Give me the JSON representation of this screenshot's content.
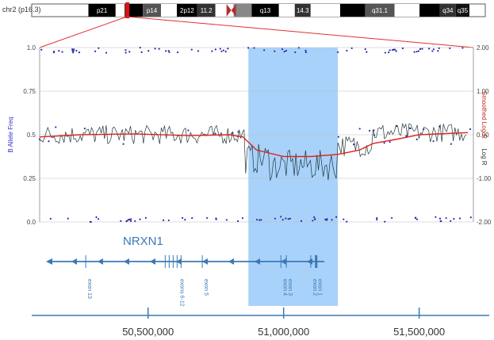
{
  "chart_data": {
    "type": "scatter",
    "chromosome": {
      "label": "chr2 (p16.3)",
      "bands": [
        {
          "name": "p21",
          "start": 0.125,
          "end": 0.185,
          "color": "#000000"
        },
        {
          "name": "",
          "start": 0.185,
          "end": 0.205,
          "color": "#ffffff"
        },
        {
          "name": "",
          "start": 0.205,
          "end": 0.245,
          "color": "#000000"
        },
        {
          "name": "p14",
          "start": 0.245,
          "end": 0.285,
          "color": "#555555"
        },
        {
          "name": "",
          "start": 0.285,
          "end": 0.32,
          "color": "#ffffff"
        },
        {
          "name": "2p12",
          "start": 0.32,
          "end": 0.365,
          "color": "#000000"
        },
        {
          "name": "11.2",
          "start": 0.365,
          "end": 0.405,
          "color": "#333333"
        },
        {
          "name": "",
          "start": 0.405,
          "end": 0.445,
          "color": "#ffffff"
        },
        {
          "name": "",
          "start": 0.445,
          "end": 0.485,
          "color": "#888888"
        },
        {
          "name": "q13",
          "start": 0.485,
          "end": 0.545,
          "color": "#000000"
        },
        {
          "name": "",
          "start": 0.545,
          "end": 0.58,
          "color": "#ffffff"
        },
        {
          "name": "14.3",
          "start": 0.58,
          "end": 0.615,
          "color": "#333333"
        },
        {
          "name": "",
          "start": 0.615,
          "end": 0.68,
          "color": "#ffffff"
        },
        {
          "name": "",
          "start": 0.68,
          "end": 0.735,
          "color": "#000000"
        },
        {
          "name": "q31.1",
          "start": 0.735,
          "end": 0.8,
          "color": "#555555"
        },
        {
          "name": "",
          "start": 0.8,
          "end": 0.855,
          "color": "#ffffff"
        },
        {
          "name": "",
          "start": 0.855,
          "end": 0.9,
          "color": "#000000"
        },
        {
          "name": "q34",
          "start": 0.9,
          "end": 0.935,
          "color": "#333333"
        },
        {
          "name": "q35",
          "start": 0.935,
          "end": 0.965,
          "color": "#111111"
        }
      ],
      "centromere": 0.44,
      "highlight": 0.21
    },
    "x_range": [
      50100000,
      51700000
    ],
    "left_axis": {
      "label": "B Allele Freq",
      "ylim": [
        0,
        1
      ],
      "ticks": [
        "0.0",
        "0.25",
        "0.5",
        "0.75",
        "1.0"
      ],
      "tick_values": [
        0,
        0.25,
        0.5,
        0.75,
        1.0
      ],
      "color": "#3333cc"
    },
    "right_axis": {
      "label_a": "Log R",
      "label_b": "Smoothed Log R",
      "ylim": [
        -2,
        2
      ],
      "ticks": [
        "-2.00",
        "-1.00",
        "0.00",
        "1.00",
        "2.00"
      ],
      "tick_values": [
        -2,
        -1,
        0,
        1,
        2
      ],
      "color_a": "#333333",
      "color_b": "#cc2222"
    },
    "deletion_region": {
      "start": 50870000,
      "end": 51200000,
      "color": "#a9d2fa"
    },
    "logR_series": {
      "name": "Log R",
      "color": "#1f3a3a",
      "segments": [
        {
          "start": 50100000,
          "end": 50860000,
          "level": 0.0,
          "noise": 0.22
        },
        {
          "start": 50860000,
          "end": 50950000,
          "level": -0.55,
          "noise": 0.35
        },
        {
          "start": 50950000,
          "end": 51200000,
          "level": -0.7,
          "noise": 0.35
        },
        {
          "start": 51200000,
          "end": 51330000,
          "level": -0.25,
          "noise": 0.25
        },
        {
          "start": 51330000,
          "end": 51680000,
          "level": 0.05,
          "noise": 0.22
        }
      ]
    },
    "smoothed_logR": {
      "name": "Smoothed Log R",
      "color": "#dd2222",
      "points": [
        [
          50100000,
          -0.05
        ],
        [
          50250000,
          0.0
        ],
        [
          50450000,
          0.02
        ],
        [
          50650000,
          -0.02
        ],
        [
          50800000,
          0.0
        ],
        [
          50850000,
          -0.05
        ],
        [
          50900000,
          -0.35
        ],
        [
          51000000,
          -0.5
        ],
        [
          51100000,
          -0.5
        ],
        [
          51200000,
          -0.45
        ],
        [
          51280000,
          -0.35
        ],
        [
          51330000,
          -0.2
        ],
        [
          51420000,
          -0.1
        ],
        [
          51500000,
          0.0
        ],
        [
          51680000,
          0.05
        ]
      ]
    },
    "baf_points_color": "#2a2ab0",
    "gene": {
      "name": "NRXN1",
      "line_start": 50100000,
      "line_end": 51150000,
      "exons": [
        {
          "label": "exon 13",
          "pos": 50270000
        },
        {
          "label": "exons 6-12",
          "pos": 50610000
        },
        {
          "label": "exon 5",
          "pos": 50700000
        },
        {
          "label": "exon 4",
          "pos": 50990000
        },
        {
          "label": "exon 3",
          "pos": 51010000
        },
        {
          "label": "exon 2",
          "pos": 51100000
        },
        {
          "label": "exon 1",
          "pos": 51120000
        }
      ]
    },
    "x_axis": {
      "ticks": [
        50500000,
        51000000,
        51500000
      ],
      "tick_labels": [
        "50,500,000",
        "51,000,000",
        "51,500,000"
      ]
    }
  }
}
